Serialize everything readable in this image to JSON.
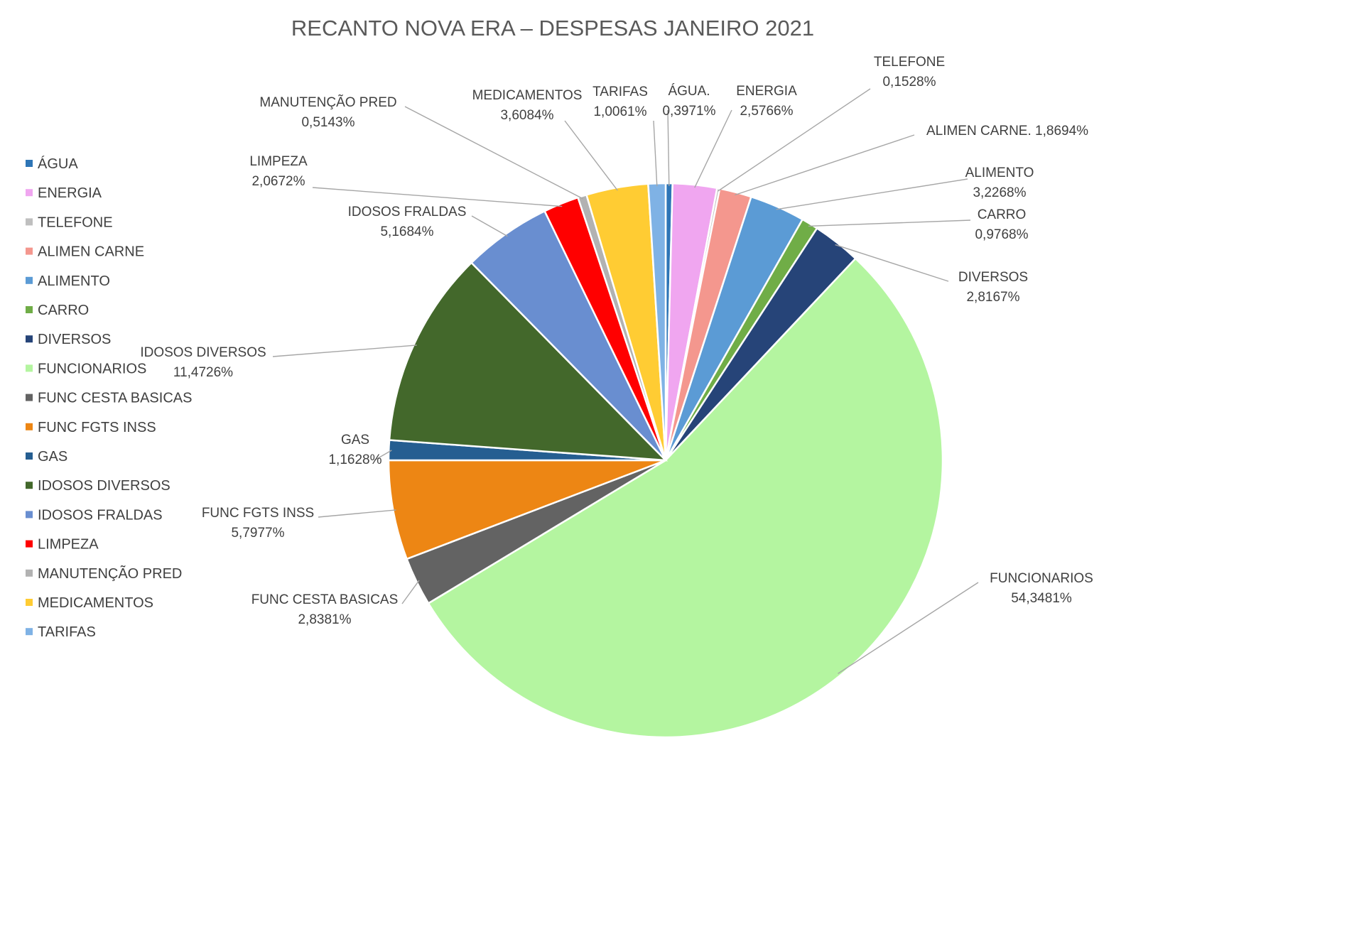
{
  "chart_data": {
    "type": "pie",
    "title": "RECANTO NOVA ERA – DESPESAS JANEIRO 2021",
    "legend_position": "left",
    "slices": [
      {
        "name": "ÁGUA",
        "label": "ÁGUA.",
        "value": 0.3971,
        "value_label": "0,3971%",
        "color": "#2E75B6"
      },
      {
        "name": "ENERGIA",
        "label": "ENERGIA",
        "value": 2.5766,
        "value_label": "2,5766%",
        "color": "#F0A6F0"
      },
      {
        "name": "TELEFONE",
        "label": "TELEFONE",
        "value": 0.1528,
        "value_label": "0,1528%",
        "color": "#BFBFBF"
      },
      {
        "name": "ALIMEN CARNE",
        "label": "ALIMEN CARNE.",
        "value": 1.8694,
        "value_label": "1,8694%",
        "color": "#F4978E"
      },
      {
        "name": "ALIMENTO",
        "label": "ALIMENTO",
        "value": 3.2268,
        "value_label": "3,2268%",
        "color": "#5B9BD5"
      },
      {
        "name": "CARRO",
        "label": "CARRO",
        "value": 0.9768,
        "value_label": "0,9768%",
        "color": "#70AD47"
      },
      {
        "name": "DIVERSOS",
        "label": "DIVERSOS",
        "value": 2.8167,
        "value_label": "2,8167%",
        "color": "#264478"
      },
      {
        "name": "FUNCIONARIOS",
        "label": "FUNCIONARIOS",
        "value": 54.3481,
        "value_label": "54,3481%",
        "color": "#B4F5A0"
      },
      {
        "name": "FUNC CESTA BASICAS",
        "label": "FUNC CESTA BASICAS",
        "value": 2.8381,
        "value_label": "2,8381%",
        "color": "#636363"
      },
      {
        "name": "FUNC FGTS INSS",
        "label": "FUNC FGTS INSS",
        "value": 5.7977,
        "value_label": "5,7977%",
        "color": "#ED8614"
      },
      {
        "name": "GAS",
        "label": "GAS",
        "value": 1.1628,
        "value_label": "1,1628%",
        "color": "#255E91"
      },
      {
        "name": "IDOSOS DIVERSOS",
        "label": "IDOSOS DIVERSOS",
        "value": 11.4726,
        "value_label": "11,4726%",
        "color": "#43682B"
      },
      {
        "name": "IDOSOS FRALDAS",
        "label": "IDOSOS FRALDAS",
        "value": 5.1684,
        "value_label": "5,1684%",
        "color": "#698ED0"
      },
      {
        "name": "LIMPEZA",
        "label": "LIMPEZA",
        "value": 2.0672,
        "value_label": "2,0672%",
        "color": "#FF0000"
      },
      {
        "name": "MANUTENÇÃO PRED",
        "label": "MANUTENÇÃO PRED",
        "value": 0.5143,
        "value_label": "0,5143%",
        "color": "#B2B2B2"
      },
      {
        "name": "MEDICAMENTOS",
        "label": "MEDICAMENTOS",
        "value": 3.6084,
        "value_label": "3,6084%",
        "color": "#FFCC33"
      },
      {
        "name": "TARIFAS",
        "label": "TARIFAS",
        "value": 1.0061,
        "value_label": "1,0061%",
        "color": "#7FB2E5"
      }
    ]
  }
}
